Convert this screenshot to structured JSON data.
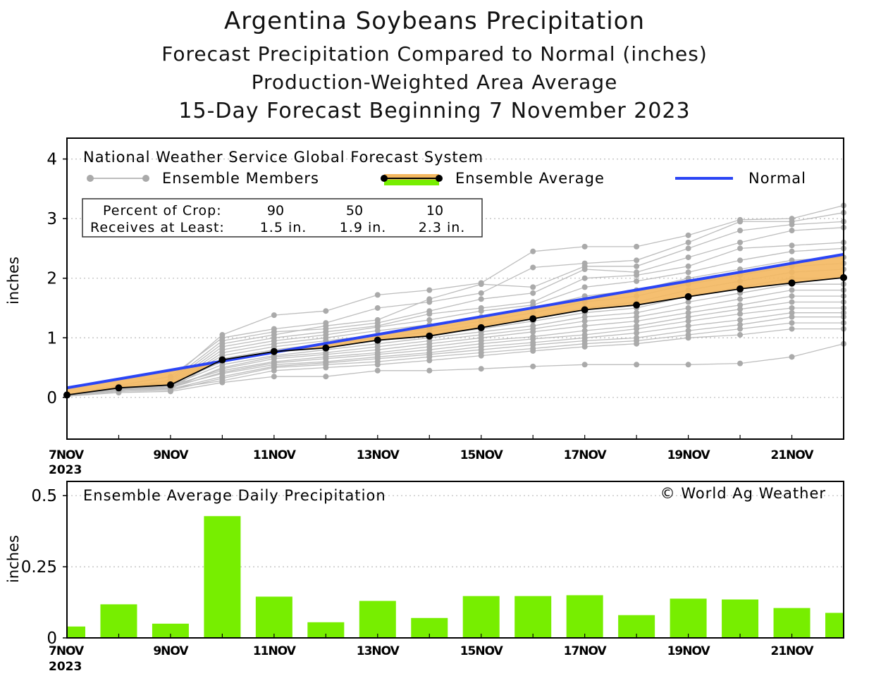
{
  "titles": {
    "main": "Argentina Soybeans Precipitation",
    "sub1": "Forecast Precipitation Compared to Normal (inches)",
    "sub2": "Production-Weighted Area Average",
    "sub3": "15-Day Forecast Beginning 7 November 2023"
  },
  "legend": {
    "header": "National Weather Service Global Forecast System",
    "members": "Ensemble Members",
    "average": "Ensemble Average",
    "normal": "Normal"
  },
  "crop_table": {
    "row1_label": "Percent of Crop:",
    "row2_label": "Receives at Least:",
    "percents": [
      "90",
      "50",
      "10"
    ],
    "amounts": [
      "1.5 in.",
      "1.9 in.",
      "2.3 in."
    ]
  },
  "copyright": "© World Ag Weather",
  "colors": {
    "normal": "#2b45f5",
    "member": "#bdbdbd",
    "fill": "#f4b860",
    "bar": "#77ee00",
    "grid": "#bbbbbb"
  },
  "chart_data": [
    {
      "type": "line",
      "title": "Forecast Precipitation Compared to Normal (inches)",
      "ylabel": "inches",
      "ylim": [
        -0.7,
        4.35
      ],
      "yticks": [
        0,
        1,
        2,
        3,
        4
      ],
      "x": [
        7,
        8,
        9,
        10,
        11,
        12,
        13,
        14,
        15,
        16,
        17,
        18,
        19,
        20,
        21,
        22
      ],
      "xticks": [
        {
          "x": 7,
          "label": "7NOV",
          "sublabel": "2023"
        },
        {
          "x": 9,
          "label": "9NOV"
        },
        {
          "x": 11,
          "label": "11NOV"
        },
        {
          "x": 13,
          "label": "13NOV"
        },
        {
          "x": 15,
          "label": "15NOV"
        },
        {
          "x": 17,
          "label": "17NOV"
        },
        {
          "x": 19,
          "label": "19NOV"
        },
        {
          "x": 21,
          "label": "21NOV"
        }
      ],
      "normal": {
        "start": 0.16,
        "end": 2.4
      },
      "series": [
        {
          "name": "Ensemble Average",
          "values": [
            0.04,
            0.16,
            0.21,
            0.63,
            0.77,
            0.83,
            0.96,
            1.03,
            1.17,
            1.32,
            1.47,
            1.55,
            1.69,
            1.82,
            1.92,
            2.01
          ]
        }
      ],
      "members": [
        [
          0.03,
          0.1,
          0.3,
          1.05,
          1.38,
          1.45,
          1.72,
          1.8,
          1.92,
          2.45,
          2.53,
          2.53,
          2.72,
          2.98,
          3.0,
          3.22
        ],
        [
          0.05,
          0.2,
          0.35,
          1.0,
          1.15,
          1.25,
          1.5,
          1.6,
          1.75,
          2.18,
          2.25,
          2.3,
          2.6,
          2.95,
          2.95,
          3.1
        ],
        [
          0.04,
          0.15,
          0.25,
          0.9,
          1.05,
          1.2,
          1.3,
          1.65,
          1.9,
          1.85,
          2.2,
          2.2,
          2.5,
          2.8,
          2.9,
          2.95
        ],
        [
          0.05,
          0.18,
          0.28,
          0.95,
          1.1,
          1.15,
          1.25,
          1.45,
          1.65,
          1.75,
          2.15,
          2.1,
          2.35,
          2.6,
          2.8,
          2.85
        ],
        [
          0.04,
          0.17,
          0.22,
          0.85,
          1.0,
          1.1,
          1.2,
          1.4,
          1.5,
          1.6,
          2.0,
          2.05,
          2.2,
          2.5,
          2.55,
          2.6
        ],
        [
          0.03,
          0.12,
          0.2,
          0.8,
          0.95,
          1.05,
          1.18,
          1.3,
          1.45,
          1.55,
          1.85,
          1.95,
          2.1,
          2.3,
          2.45,
          2.5
        ],
        [
          0.04,
          0.16,
          0.18,
          0.75,
          0.9,
          1.0,
          1.12,
          1.22,
          1.35,
          1.5,
          1.7,
          1.8,
          2.0,
          2.15,
          2.3,
          2.35
        ],
        [
          0.05,
          0.15,
          0.2,
          0.7,
          0.85,
          0.95,
          1.05,
          1.15,
          1.28,
          1.42,
          1.6,
          1.7,
          1.9,
          2.05,
          2.2,
          2.25
        ],
        [
          0.03,
          0.14,
          0.15,
          0.65,
          0.8,
          0.9,
          1.0,
          1.1,
          1.22,
          1.35,
          1.5,
          1.6,
          1.8,
          1.95,
          2.1,
          2.15
        ],
        [
          0.04,
          0.15,
          0.22,
          0.6,
          0.75,
          0.85,
          0.95,
          1.05,
          1.15,
          1.28,
          1.42,
          1.5,
          1.7,
          1.85,
          2.0,
          2.0
        ],
        [
          0.04,
          0.16,
          0.2,
          0.55,
          0.7,
          0.8,
          0.9,
          1.0,
          1.1,
          1.2,
          1.35,
          1.42,
          1.6,
          1.75,
          1.9,
          1.9
        ],
        [
          0.03,
          0.12,
          0.15,
          0.5,
          0.68,
          0.75,
          0.85,
          0.95,
          1.05,
          1.15,
          1.28,
          1.35,
          1.5,
          1.65,
          1.8,
          1.8
        ],
        [
          0.04,
          0.14,
          0.18,
          0.48,
          0.65,
          0.72,
          0.8,
          0.9,
          1.0,
          1.1,
          1.2,
          1.28,
          1.42,
          1.55,
          1.7,
          1.7
        ],
        [
          0.05,
          0.15,
          0.2,
          0.45,
          0.6,
          0.68,
          0.75,
          0.85,
          0.95,
          1.02,
          1.12,
          1.2,
          1.35,
          1.48,
          1.6,
          1.6
        ],
        [
          0.03,
          0.13,
          0.16,
          0.42,
          0.58,
          0.65,
          0.72,
          0.8,
          0.9,
          0.98,
          1.05,
          1.15,
          1.28,
          1.4,
          1.5,
          1.5
        ],
        [
          0.04,
          0.14,
          0.18,
          0.4,
          0.55,
          0.6,
          0.68,
          0.75,
          0.85,
          0.92,
          1.0,
          1.08,
          1.2,
          1.3,
          1.42,
          1.42
        ],
        [
          0.04,
          0.12,
          0.14,
          0.35,
          0.52,
          0.58,
          0.65,
          0.72,
          0.8,
          0.88,
          0.95,
          1.0,
          1.12,
          1.22,
          1.35,
          1.35
        ],
        [
          0.03,
          0.1,
          0.12,
          0.32,
          0.5,
          0.55,
          0.6,
          0.68,
          0.75,
          0.82,
          0.9,
          0.95,
          1.05,
          1.15,
          1.25,
          1.25
        ],
        [
          0.04,
          0.12,
          0.15,
          0.28,
          0.45,
          0.5,
          0.55,
          0.62,
          0.7,
          0.78,
          0.85,
          0.9,
          1.0,
          1.05,
          1.15,
          1.15
        ],
        [
          0.02,
          0.08,
          0.1,
          0.25,
          0.35,
          0.35,
          0.45,
          0.45,
          0.48,
          0.52,
          0.55,
          0.55,
          0.55,
          0.57,
          0.68,
          0.9
        ]
      ]
    },
    {
      "type": "bar",
      "title": "Ensemble Average Daily Precipitation",
      "ylabel": "inches",
      "ylim": [
        0,
        0.55
      ],
      "yticks": [
        0,
        0.25,
        0.5
      ],
      "ytick_labels": [
        "0",
        "0.25",
        "0.5"
      ],
      "x": [
        7,
        8,
        9,
        10,
        11,
        12,
        13,
        14,
        15,
        16,
        17,
        18,
        19,
        20,
        21,
        22
      ],
      "values": [
        0.04,
        0.118,
        0.05,
        0.428,
        0.145,
        0.055,
        0.13,
        0.07,
        0.147,
        0.147,
        0.15,
        0.08,
        0.138,
        0.135,
        0.105,
        0.088
      ]
    }
  ]
}
